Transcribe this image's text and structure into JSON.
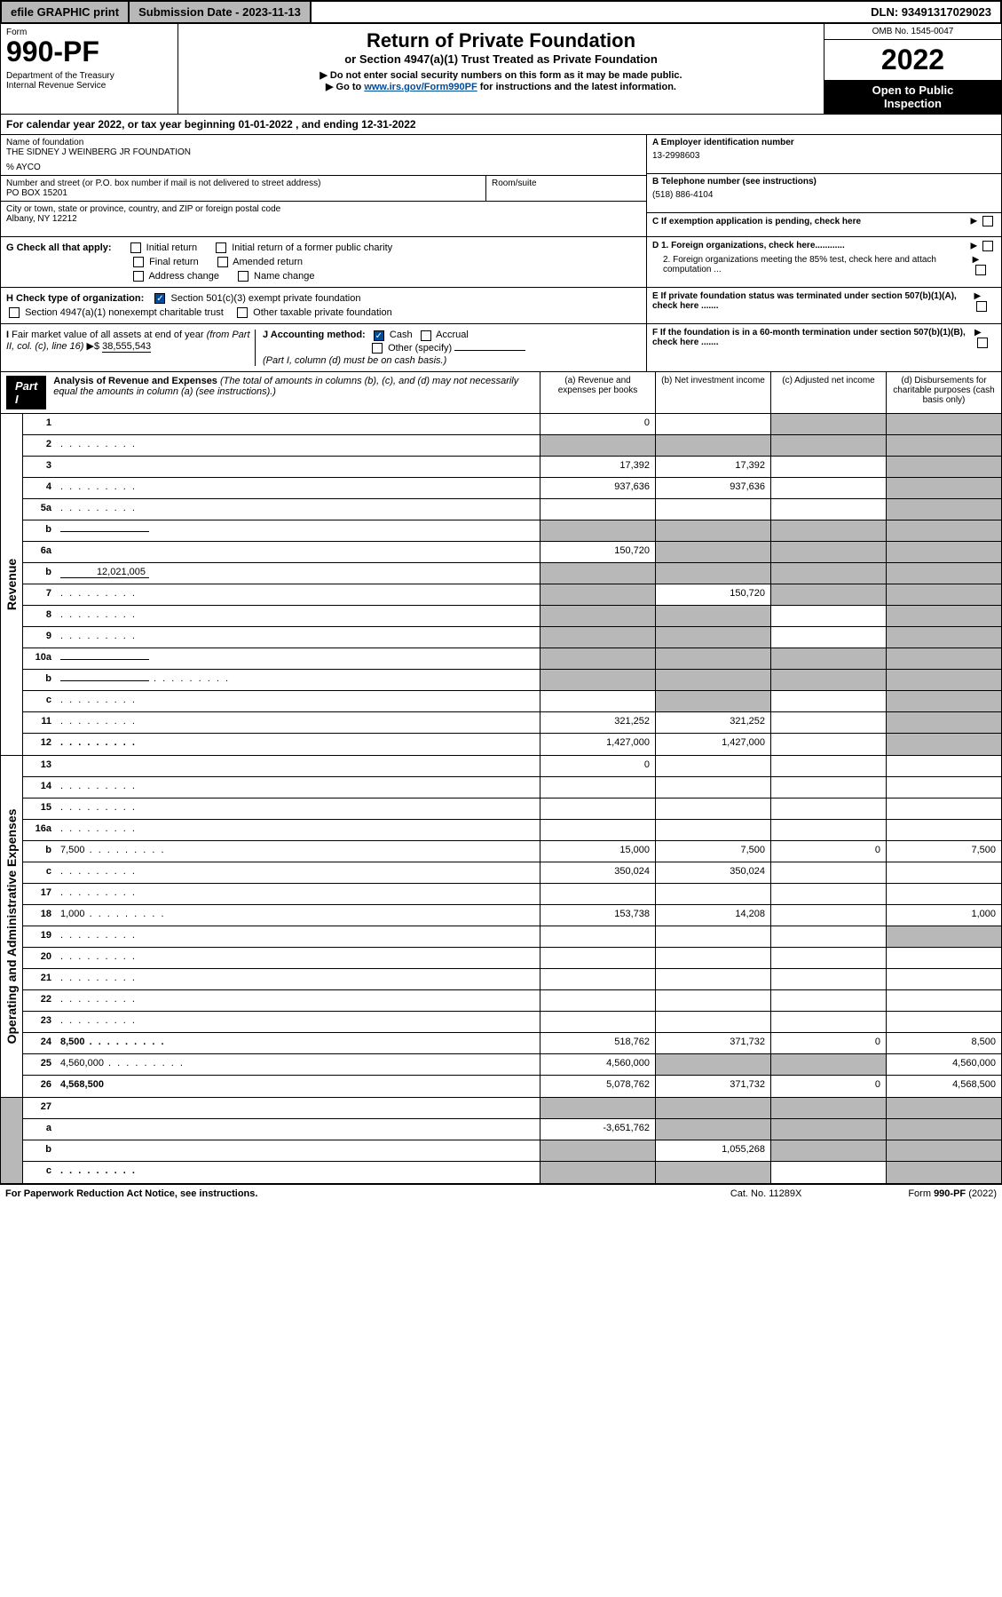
{
  "topbar": {
    "efile": "efile GRAPHIC print",
    "submission": "Submission Date - 2023-11-13",
    "dln": "DLN: 93491317029023"
  },
  "header": {
    "form_label": "Form",
    "form_num": "990-PF",
    "dept": "Department of the Treasury\nInternal Revenue Service",
    "title": "Return of Private Foundation",
    "sub1": "or Section 4947(a)(1) Trust Treated as Private Foundation",
    "sub2": "▶ Do not enter social security numbers on this form as it may be made public.",
    "sub3": "▶ Go to www.irs.gov/Form990PF for instructions and the latest information.",
    "link": "www.irs.gov/Form990PF",
    "omb": "OMB No. 1545-0047",
    "year": "2022",
    "open": "Open to Public Inspection"
  },
  "calendar": "For calendar year 2022, or tax year beginning 01-01-2022                        , and ending 12-31-2022",
  "info": {
    "name_label": "Name of foundation",
    "name": "THE SIDNEY J WEINBERG JR FOUNDATION",
    "care": "% AYCO",
    "addr_label": "Number and street (or P.O. box number if mail is not delivered to street address)",
    "addr": "PO BOX 15201",
    "room_label": "Room/suite",
    "city_label": "City or town, state or province, country, and ZIP or foreign postal code",
    "city": "Albany, NY  12212",
    "a_label": "A Employer identification number",
    "a_val": "13-2998603",
    "b_label": "B Telephone number (see instructions)",
    "b_val": "(518) 886-4104",
    "c_label": "C If exemption application is pending, check here"
  },
  "g": {
    "label": "G Check all that apply:",
    "opts": [
      "Initial return",
      "Initial return of a former public charity",
      "Final return",
      "Amended return",
      "Address change",
      "Name change"
    ]
  },
  "h": {
    "label": "H Check type of organization:",
    "opt1": "Section 501(c)(3) exempt private foundation",
    "opt2": "Section 4947(a)(1) nonexempt charitable trust",
    "opt3": "Other taxable private foundation"
  },
  "d": {
    "d1": "D 1. Foreign organizations, check here............",
    "d2": "2. Foreign organizations meeting the 85% test, check here and attach computation ..."
  },
  "e": "E  If private foundation status was terminated under section 507(b)(1)(A), check here .......",
  "f": "F  If the foundation is in a 60-month termination under section 507(b)(1)(B), check here .......",
  "i": {
    "label": "I Fair market value of all assets at end of year (from Part II, col. (c), line 16) ▶$",
    "val": "38,555,543"
  },
  "j": {
    "label": "J Accounting method:",
    "cash": "Cash",
    "accrual": "Accrual",
    "other": "Other (specify)",
    "note": "(Part I, column (d) must be on cash basis.)"
  },
  "part1": {
    "label": "Part I",
    "title": "Analysis of Revenue and Expenses",
    "note": "(The total of amounts in columns (b), (c), and (d) may not necessarily equal the amounts in column (a) (see instructions).)",
    "cols": {
      "a": "(a)    Revenue and expenses per books",
      "b": "(b)    Net investment income",
      "c": "(c)   Adjusted net income",
      "d": "(d)   Disbursements for charitable purposes (cash basis only)"
    }
  },
  "revenue_label": "Revenue",
  "expenses_label": "Operating and Administrative Expenses",
  "rows": [
    {
      "n": "1",
      "d": "",
      "a": "0",
      "b": "",
      "c": "",
      "grey_c": true,
      "grey_d": true
    },
    {
      "n": "2",
      "d": "",
      "dots": true,
      "a": "",
      "b": "",
      "c": "",
      "grey_a": true,
      "grey_b": true,
      "grey_c": true,
      "grey_d": true
    },
    {
      "n": "3",
      "d": "",
      "a": "17,392",
      "b": "17,392",
      "c": "",
      "grey_d": true
    },
    {
      "n": "4",
      "d": "",
      "dots": true,
      "a": "937,636",
      "b": "937,636",
      "c": "",
      "grey_d": true
    },
    {
      "n": "5a",
      "d": "",
      "dots": true,
      "a": "",
      "b": "",
      "c": "",
      "grey_d": true
    },
    {
      "n": "b",
      "d": "",
      "sub": "",
      "a": "",
      "b": "",
      "c": "",
      "grey_a": true,
      "grey_b": true,
      "grey_c": true,
      "grey_d": true
    },
    {
      "n": "6a",
      "d": "",
      "a": "150,720",
      "b": "",
      "c": "",
      "grey_b": true,
      "grey_c": true,
      "grey_d": true
    },
    {
      "n": "b",
      "d": "",
      "sub": "12,021,005",
      "a": "",
      "b": "",
      "c": "",
      "grey_a": true,
      "grey_b": true,
      "grey_c": true,
      "grey_d": true
    },
    {
      "n": "7",
      "d": "",
      "dots": true,
      "a": "",
      "b": "150,720",
      "c": "",
      "grey_a": true,
      "grey_c": true,
      "grey_d": true
    },
    {
      "n": "8",
      "d": "",
      "dots": true,
      "a": "",
      "b": "",
      "c": "",
      "grey_a": true,
      "grey_b": true,
      "grey_d": true
    },
    {
      "n": "9",
      "d": "",
      "dots": true,
      "a": "",
      "b": "",
      "c": "",
      "grey_a": true,
      "grey_b": true,
      "grey_d": true
    },
    {
      "n": "10a",
      "d": "",
      "sub": "",
      "a": "",
      "b": "",
      "c": "",
      "grey_a": true,
      "grey_b": true,
      "grey_c": true,
      "grey_d": true
    },
    {
      "n": "b",
      "d": "",
      "dots": true,
      "sub": "",
      "a": "",
      "b": "",
      "c": "",
      "grey_a": true,
      "grey_b": true,
      "grey_c": true,
      "grey_d": true
    },
    {
      "n": "c",
      "d": "",
      "dots": true,
      "a": "",
      "b": "",
      "c": "",
      "grey_b": true,
      "grey_d": true
    },
    {
      "n": "11",
      "d": "",
      "dots": true,
      "a": "321,252",
      "b": "321,252",
      "c": "",
      "grey_d": true
    },
    {
      "n": "12",
      "d": "",
      "dots": true,
      "bold": true,
      "a": "1,427,000",
      "b": "1,427,000",
      "c": "",
      "grey_d": true
    }
  ],
  "exp_rows": [
    {
      "n": "13",
      "d": "",
      "a": "0",
      "b": "",
      "c": ""
    },
    {
      "n": "14",
      "d": "",
      "dots": true,
      "a": "",
      "b": "",
      "c": ""
    },
    {
      "n": "15",
      "d": "",
      "dots": true,
      "a": "",
      "b": "",
      "c": ""
    },
    {
      "n": "16a",
      "d": "",
      "dots": true,
      "a": "",
      "b": "",
      "c": ""
    },
    {
      "n": "b",
      "d": "7,500",
      "dots": true,
      "a": "15,000",
      "b": "7,500",
      "c": "0"
    },
    {
      "n": "c",
      "d": "",
      "dots": true,
      "a": "350,024",
      "b": "350,024",
      "c": ""
    },
    {
      "n": "17",
      "d": "",
      "dots": true,
      "a": "",
      "b": "",
      "c": ""
    },
    {
      "n": "18",
      "d": "1,000",
      "dots": true,
      "a": "153,738",
      "b": "14,208",
      "c": ""
    },
    {
      "n": "19",
      "d": "",
      "dots": true,
      "a": "",
      "b": "",
      "c": "",
      "grey_d": true
    },
    {
      "n": "20",
      "d": "",
      "dots": true,
      "a": "",
      "b": "",
      "c": ""
    },
    {
      "n": "21",
      "d": "",
      "dots": true,
      "a": "",
      "b": "",
      "c": ""
    },
    {
      "n": "22",
      "d": "",
      "dots": true,
      "a": "",
      "b": "",
      "c": ""
    },
    {
      "n": "23",
      "d": "",
      "dots": true,
      "a": "",
      "b": "",
      "c": ""
    },
    {
      "n": "24",
      "d": "8,500",
      "dots": true,
      "bold": true,
      "a": "518,762",
      "b": "371,732",
      "c": "0"
    },
    {
      "n": "25",
      "d": "4,560,000",
      "dots": true,
      "a": "4,560,000",
      "b": "",
      "c": "",
      "grey_b": true,
      "grey_c": true
    },
    {
      "n": "26",
      "d": "4,568,500",
      "bold": true,
      "a": "5,078,762",
      "b": "371,732",
      "c": "0"
    }
  ],
  "net_rows": [
    {
      "n": "27",
      "d": "",
      "a": "",
      "b": "",
      "c": "",
      "grey_a": true,
      "grey_b": true,
      "grey_c": true,
      "grey_d": true
    },
    {
      "n": "a",
      "d": "",
      "bold": true,
      "a": "-3,651,762",
      "b": "",
      "c": "",
      "grey_b": true,
      "grey_c": true,
      "grey_d": true
    },
    {
      "n": "b",
      "d": "",
      "bold": true,
      "a": "",
      "b": "1,055,268",
      "c": "",
      "grey_a": true,
      "grey_c": true,
      "grey_d": true
    },
    {
      "n": "c",
      "d": "",
      "dots": true,
      "bold": true,
      "a": "",
      "b": "",
      "c": "",
      "grey_a": true,
      "grey_b": true,
      "grey_d": true
    }
  ],
  "footer": {
    "left": "For Paperwork Reduction Act Notice, see instructions.",
    "mid": "Cat. No. 11289X",
    "right": "Form 990-PF (2022)"
  },
  "colors": {
    "grey": "#b8b8b8",
    "link": "#004b9a"
  }
}
